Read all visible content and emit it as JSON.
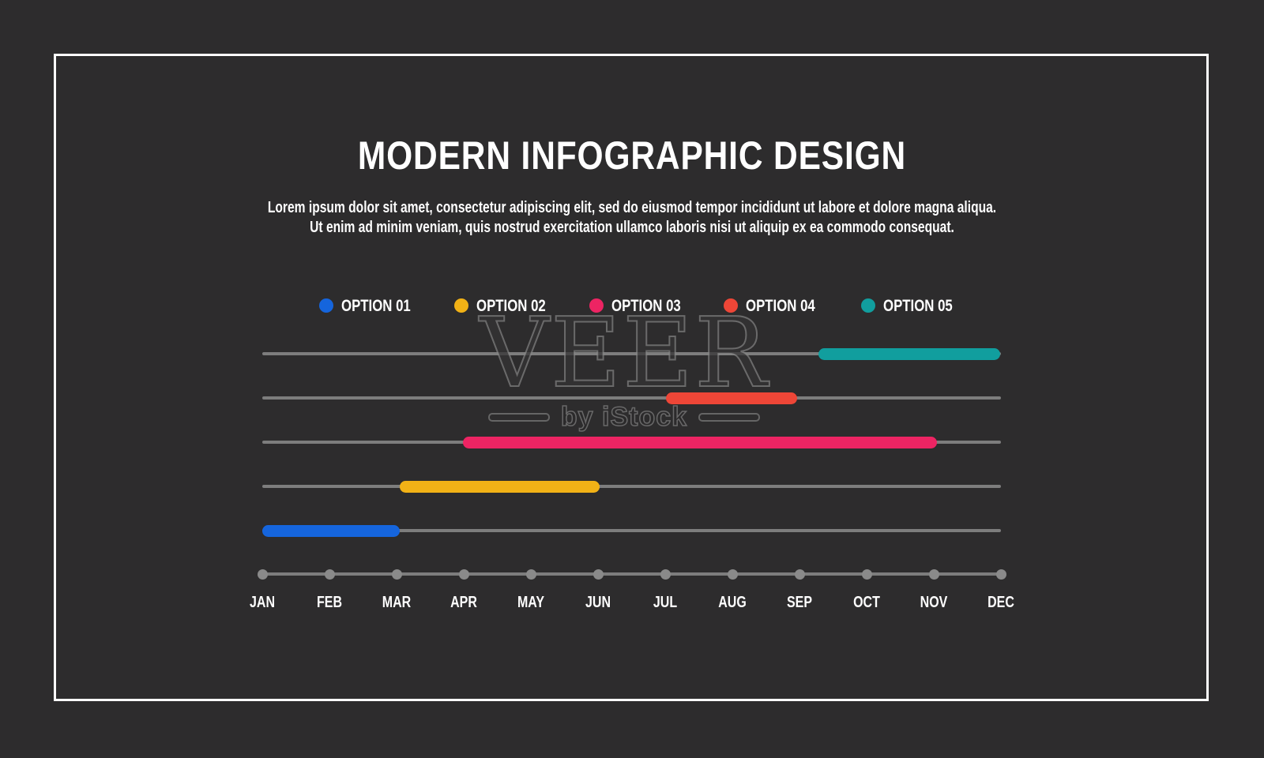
{
  "title": "MODERN INFOGRAPHIC DESIGN",
  "subtitle_line1": "Lorem ipsum dolor sit amet, consectetur adipiscing elit, sed do eiusmod tempor incididunt ut labore et dolore magna aliqua.",
  "subtitle_line2": "Ut enim ad minim veniam, quis nostrud exercitation ullamco laboris nisi ut aliquip ex ea commodo consequat.",
  "watermark": {
    "brand": "VEER",
    "byline": "by iStock"
  },
  "legend": [
    {
      "label": "OPTION 01",
      "color": "#1565dd"
    },
    {
      "label": "OPTION 02",
      "color": "#f2b216"
    },
    {
      "label": "OPTION 03",
      "color": "#ed2463"
    },
    {
      "label": "OPTION 04",
      "color": "#ee4637"
    },
    {
      "label": "OPTION 05",
      "color": "#119e9e"
    }
  ],
  "chart_data": {
    "type": "gantt",
    "title": "",
    "months": [
      "JAN",
      "FEB",
      "MAR",
      "APR",
      "MAY",
      "JUN",
      "JUL",
      "AUG",
      "SEP",
      "OCT",
      "NOV",
      "DEC"
    ],
    "x_range_months": [
      0,
      11
    ],
    "grid": "horizontal-track-per-row",
    "track_color": "#7d7d7d",
    "axis_dot_color": "#8a8a8a",
    "background_color": "#2d2c2d",
    "series": [
      {
        "name": "OPTION 05",
        "color": "#119e9e",
        "row": 0,
        "start_month_index": 8.28,
        "end_month_index": 10.99
      },
      {
        "name": "OPTION 04",
        "color": "#ee4637",
        "row": 1,
        "start_month_index": 6.01,
        "end_month_index": 7.96
      },
      {
        "name": "OPTION 03",
        "color": "#ed2463",
        "row": 2,
        "start_month_index": 2.99,
        "end_month_index": 10.05
      },
      {
        "name": "OPTION 02",
        "color": "#f2b216",
        "row": 3,
        "start_month_index": 2.05,
        "end_month_index": 5.02
      },
      {
        "name": "OPTION 01",
        "color": "#1565dd",
        "row": 4,
        "start_month_index": 0.0,
        "end_month_index": 2.05
      }
    ]
  }
}
